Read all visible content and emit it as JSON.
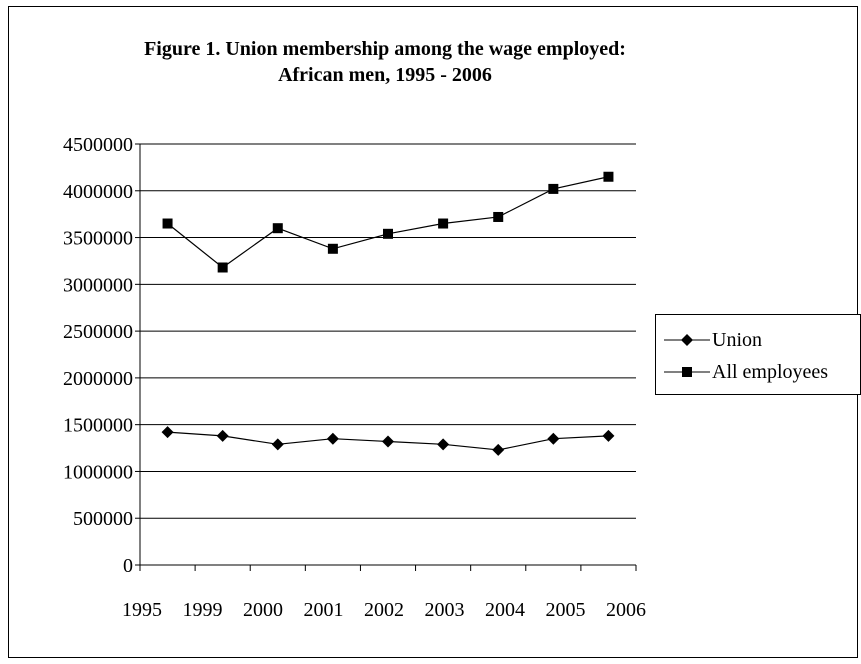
{
  "chart_data": {
    "type": "line",
    "title": "Figure 1. Union membership among the wage employed:",
    "subtitle": "African men, 1995 - 2006",
    "xlabel": "",
    "ylabel": "",
    "categories": [
      "1995",
      "1999",
      "2000",
      "2001",
      "2002",
      "2003",
      "2004",
      "2005",
      "2006"
    ],
    "ylim": [
      0,
      4500000
    ],
    "yticks": [
      "0",
      "500000",
      "1000000",
      "1500000",
      "2000000",
      "2500000",
      "3000000",
      "3500000",
      "4000000",
      "4500000"
    ],
    "grid": true,
    "legend_position": "right",
    "series": [
      {
        "name": "Union",
        "marker": "diamond",
        "color": "#000000",
        "values": [
          1420000,
          1380000,
          1290000,
          1350000,
          1320000,
          1290000,
          1230000,
          1350000,
          1380000
        ]
      },
      {
        "name": "All employees",
        "marker": "square",
        "color": "#000000",
        "values": [
          3650000,
          3180000,
          3600000,
          3380000,
          3540000,
          3650000,
          3720000,
          4020000,
          4150000
        ]
      }
    ]
  }
}
